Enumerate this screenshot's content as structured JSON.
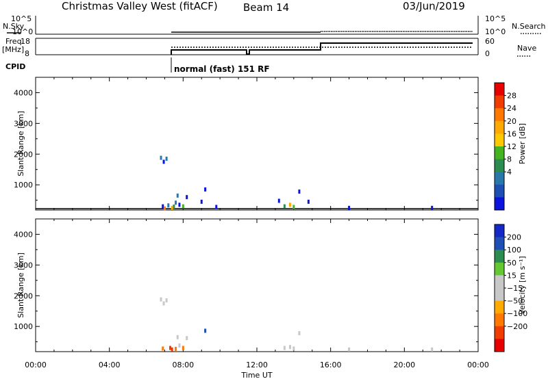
{
  "header": {
    "station": "Christmas Valley West (fitACF)",
    "beam": "Beam 14",
    "date": "03/Jun/2019"
  },
  "params": {
    "nsky_label": "N.Sky",
    "nsky_ticks": [
      "10^5",
      "10^0"
    ],
    "nsearch_label": "N.Search",
    "nsearch_ticks": [
      "10^5",
      "10^0"
    ],
    "freq_label": "Freq.",
    "freq_unit": "[MHz]",
    "freq_ticks": [
      "18",
      "8"
    ],
    "nave_label": "Nave",
    "nave_ticks": [
      "60",
      "0"
    ],
    "cpid_label": "CPID",
    "cpid_text": "normal (fast) 151 RF",
    "freq_steps": [
      {
        "from": "06:24",
        "to": "10:36",
        "value": 10
      },
      {
        "from": "10:36",
        "to": "10:48",
        "value": 8
      },
      {
        "from": "10:48",
        "to": "15:00",
        "value": 10
      },
      {
        "from": "15:00",
        "to": "24:00",
        "value": 14
      }
    ]
  },
  "power_panel": {
    "ylabel": "Slant Range [km]",
    "yticks": [
      "4000",
      "3000",
      "2000",
      "1000"
    ],
    "colorbar_label": "Power [dB]",
    "colorbar_ticks": [
      "28",
      "24",
      "20",
      "16",
      "12",
      "8",
      "4"
    ],
    "colorbar_colors": [
      "#e60000",
      "#f03c00",
      "#ff7800",
      "#ffaa00",
      "#ffc800",
      "#46b41e",
      "#2d8c50",
      "#2a78aa",
      "#1e50b4",
      "#0a14dc"
    ]
  },
  "velocity_panel": {
    "ylabel": "Slant Range [km]",
    "yticks": [
      "4000",
      "3000",
      "2000",
      "1000"
    ],
    "colorbar_label": "Velocity [m s⁻¹]",
    "colorbar_ticks": [
      "200",
      "100",
      "50",
      "15",
      "−15",
      "−50",
      "−100",
      "−200"
    ],
    "colorbar_colors": [
      "#1428c8",
      "#1e50b4",
      "#2d8c50",
      "#64c832",
      "#c8c8c8",
      "#c8c8c8",
      "#ffaa00",
      "#ff7800",
      "#f03c00",
      "#e60000"
    ]
  },
  "xaxis": {
    "ticks": [
      "00:00",
      "04:00",
      "08:00",
      "12:00",
      "16:00",
      "20:00",
      "00:00"
    ],
    "label": "Time UT"
  },
  "chart_data": {
    "type": "heatmap",
    "title": "Christmas Valley West (fitACF)",
    "xlabel": "Time UT",
    "ylabel": "Slant Range [km]",
    "xlim": [
      0,
      24
    ],
    "ylim": [
      180,
      4500
    ],
    "series": [
      {
        "name": "Power [dB]",
        "points": [
          {
            "t": 6.8,
            "r": 1880,
            "v": 8
          },
          {
            "t": 6.95,
            "r": 1750,
            "v": 4
          },
          {
            "t": 7.1,
            "r": 1850,
            "v": 8
          },
          {
            "t": 6.9,
            "r": 300,
            "v": 4
          },
          {
            "t": 7.2,
            "r": 330,
            "v": 8
          },
          {
            "t": 7.5,
            "r": 290,
            "v": 12
          },
          {
            "t": 7.8,
            "r": 350,
            "v": 4
          },
          {
            "t": 8.0,
            "r": 300,
            "v": 16
          },
          {
            "t": 7.4,
            "r": 250,
            "v": 20
          },
          {
            "t": 7.0,
            "r": 230,
            "v": 24
          },
          {
            "t": 7.6,
            "r": 420,
            "v": 8
          },
          {
            "t": 8.2,
            "r": 600,
            "v": 4
          },
          {
            "t": 7.7,
            "r": 650,
            "v": 8
          },
          {
            "t": 9.2,
            "r": 850,
            "v": 4
          },
          {
            "t": 9.0,
            "r": 450,
            "v": 4
          },
          {
            "t": 9.8,
            "r": 280,
            "v": 4
          },
          {
            "t": 13.5,
            "r": 300,
            "v": 12
          },
          {
            "t": 13.8,
            "r": 350,
            "v": 20
          },
          {
            "t": 14.0,
            "r": 280,
            "v": 16
          },
          {
            "t": 13.2,
            "r": 480,
            "v": 4
          },
          {
            "t": 14.3,
            "r": 780,
            "v": 4
          },
          {
            "t": 14.8,
            "r": 450,
            "v": 4
          },
          {
            "t": 17.0,
            "r": 250,
            "v": 4
          },
          {
            "t": 21.5,
            "r": 250,
            "v": 4
          }
        ]
      },
      {
        "name": "Velocity [m s-1]",
        "points": [
          {
            "t": 6.8,
            "r": 1880,
            "v": -15
          },
          {
            "t": 6.95,
            "r": 1750,
            "v": -15
          },
          {
            "t": 7.1,
            "r": 1850,
            "v": 0
          },
          {
            "t": 6.9,
            "r": 280,
            "v": -50
          },
          {
            "t": 7.3,
            "r": 300,
            "v": -100
          },
          {
            "t": 7.6,
            "r": 270,
            "v": -50
          },
          {
            "t": 8.0,
            "r": 300,
            "v": -50
          },
          {
            "t": 7.4,
            "r": 250,
            "v": -100
          },
          {
            "t": 7.8,
            "r": 380,
            "v": -15
          },
          {
            "t": 8.2,
            "r": 620,
            "v": -15
          },
          {
            "t": 7.7,
            "r": 650,
            "v": 0
          },
          {
            "t": 9.2,
            "r": 860,
            "v": 100
          },
          {
            "t": 13.5,
            "r": 300,
            "v": 0
          },
          {
            "t": 13.8,
            "r": 330,
            "v": -15
          },
          {
            "t": 14.0,
            "r": 280,
            "v": 0
          },
          {
            "t": 14.3,
            "r": 780,
            "v": -15
          },
          {
            "t": 17.0,
            "r": 250,
            "v": 0
          },
          {
            "t": 21.5,
            "r": 250,
            "v": 0
          }
        ]
      }
    ]
  }
}
